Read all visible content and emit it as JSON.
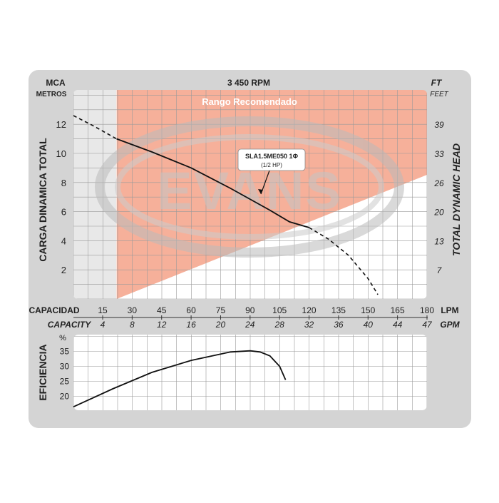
{
  "chart_data": [
    {
      "type": "line",
      "title": "3 450 RPM",
      "band_label": "Rango Recomendado",
      "brand": "EVANS",
      "ylabel_left": "CARGA  DINAMICA  TOTAL",
      "ylabel_right": "TOTAL  DYNAMIC  HEAD",
      "yunit_left": [
        "MCA",
        "METROS"
      ],
      "yunit_right": [
        "FT",
        "FEET"
      ],
      "xunit_lpm": "LPM",
      "xunit_gpm": "GPM",
      "xlabel_lpm": "CAPACIDAD",
      "xlabel_gpm": "CAPACITY",
      "x_lpm_ticks": [
        "15",
        "30",
        "45",
        "60",
        "75",
        "90",
        "105",
        "120",
        "135",
        "150",
        "165",
        "180"
      ],
      "x_gpm_ticks": [
        "4",
        "8",
        "12",
        "16",
        "20",
        "24",
        "28",
        "32",
        "36",
        "40",
        "44",
        "47"
      ],
      "y_left_ticks": [
        "2",
        "4",
        "6",
        "8",
        "10",
        "12"
      ],
      "y_right_ticks": [
        "7",
        "13",
        "20",
        "26",
        "33",
        "39"
      ],
      "xlim": [
        0,
        180
      ],
      "ylim": [
        0,
        14
      ],
      "grid": true,
      "recommended_range_lpm": [
        22,
        180
      ],
      "callout": {
        "model": "SLA1.5ME050 1Φ",
        "power": "(1/2 HP)"
      },
      "series": [
        {
          "name": "SLA1.5ME050 1Φ",
          "solid_x": [
            22,
            40,
            60,
            80,
            100,
            110,
            120
          ],
          "solid_y": [
            11.0,
            10.1,
            9.0,
            7.6,
            6.1,
            5.3,
            4.9
          ],
          "dashed_before_x": [
            0,
            10,
            22
          ],
          "dashed_before_y": [
            12.6,
            11.9,
            11.0
          ],
          "dashed_after_x": [
            120,
            130,
            140,
            150,
            155
          ],
          "dashed_after_y": [
            4.9,
            4.1,
            3.0,
            1.4,
            0.3
          ]
        }
      ]
    },
    {
      "type": "line",
      "ylabel": "EFICIENCIA",
      "yunit": "%",
      "y_ticks": [
        "20",
        "25",
        "30",
        "35"
      ],
      "ylim": [
        15,
        38
      ],
      "xlim": [
        0,
        180
      ],
      "grid": true,
      "series": [
        {
          "x": [
            0,
            20,
            40,
            60,
            80,
            90,
            95,
            100,
            105,
            108
          ],
          "y": [
            16.5,
            22.5,
            28.0,
            32.0,
            34.8,
            35.2,
            34.8,
            33.5,
            30.0,
            25.5
          ]
        }
      ]
    }
  ]
}
